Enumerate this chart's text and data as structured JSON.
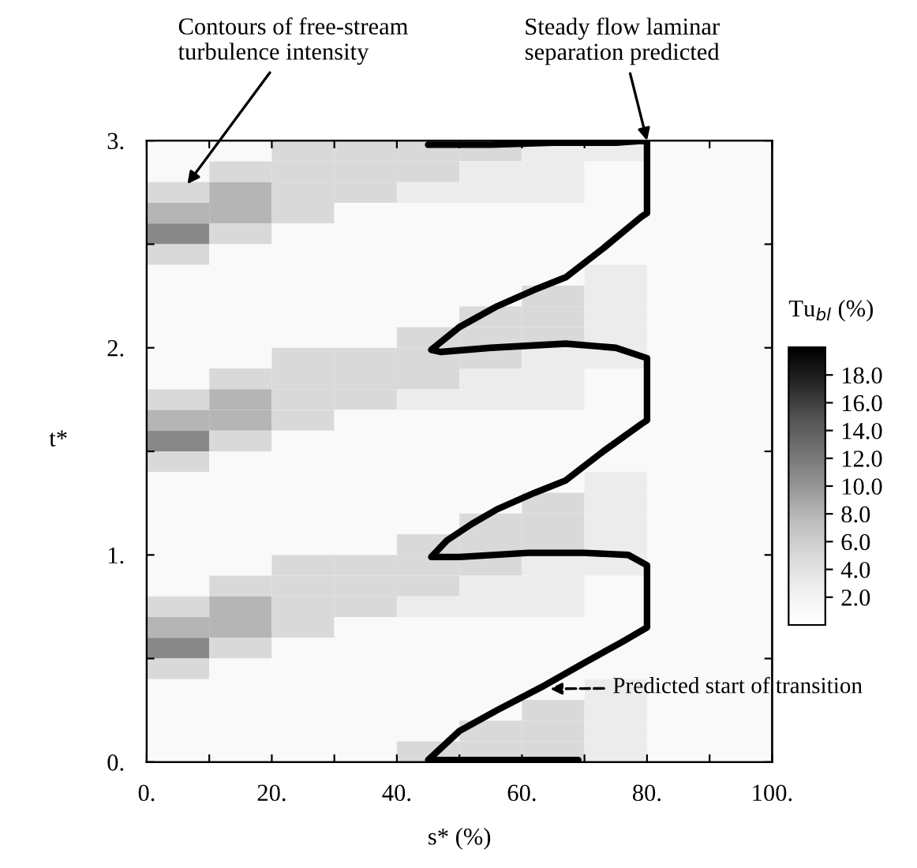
{
  "chart_data": [
    {
      "type": "heatmap",
      "clabel": "Tu$_{bl}$ (%)",
      "categories": [
        null,
        null,
        null,
        null,
        null,
        null,
        null,
        null,
        null,
        null
      ],
      "y_categories": [
        null,
        null,
        null,
        null,
        null,
        null,
        null,
        null,
        null,
        null,
        null,
        null,
        null,
        null,
        null,
        null,
        null,
        null,
        null,
        null,
        null,
        null,
        null,
        null,
        null,
        null,
        null,
        null,
        null,
        null
      ],
      "cells": [
        [
          1,
          1,
          5,
          5,
          5,
          5,
          3,
          3,
          1,
          1
        ],
        [
          1,
          5,
          5,
          5,
          5,
          3,
          3,
          1,
          1,
          1
        ],
        [
          5,
          8,
          5,
          5,
          3,
          3,
          3,
          1,
          1,
          1
        ],
        [
          8,
          8,
          5,
          1,
          1,
          1,
          1,
          1,
          1,
          1
        ],
        [
          11,
          5,
          1,
          1,
          1,
          1,
          1,
          1,
          1,
          1
        ],
        [
          5,
          1,
          1,
          1,
          1,
          1,
          1,
          1,
          1,
          1
        ],
        [
          1,
          1,
          1,
          1,
          1,
          1,
          1,
          3,
          1,
          1
        ],
        [
          1,
          1,
          1,
          1,
          1,
          1,
          5,
          3,
          1,
          1
        ],
        [
          1,
          1,
          1,
          1,
          1,
          5,
          5,
          3,
          1,
          1
        ],
        [
          1,
          1,
          1,
          1,
          5,
          5,
          5,
          3,
          1,
          1
        ],
        [
          1,
          1,
          5,
          5,
          5,
          5,
          3,
          3,
          1,
          1
        ],
        [
          1,
          5,
          5,
          5,
          5,
          3,
          3,
          1,
          1,
          1
        ],
        [
          5,
          8,
          5,
          5,
          3,
          3,
          3,
          1,
          1,
          1
        ],
        [
          8,
          8,
          5,
          1,
          1,
          1,
          1,
          1,
          1,
          1
        ],
        [
          11,
          5,
          1,
          1,
          1,
          1,
          1,
          1,
          1,
          1
        ],
        [
          5,
          1,
          1,
          1,
          1,
          1,
          1,
          1,
          1,
          1
        ],
        [
          1,
          1,
          1,
          1,
          1,
          1,
          1,
          3,
          1,
          1
        ],
        [
          1,
          1,
          1,
          1,
          1,
          1,
          5,
          3,
          1,
          1
        ],
        [
          1,
          1,
          1,
          1,
          1,
          5,
          5,
          3,
          1,
          1
        ],
        [
          1,
          1,
          1,
          1,
          5,
          5,
          5,
          3,
          1,
          1
        ],
        [
          1,
          1,
          5,
          5,
          5,
          5,
          3,
          3,
          1,
          1
        ],
        [
          1,
          5,
          5,
          5,
          5,
          3,
          3,
          1,
          1,
          1
        ],
        [
          5,
          8,
          5,
          5,
          3,
          3,
          3,
          1,
          1,
          1
        ],
        [
          8,
          8,
          5,
          1,
          1,
          1,
          1,
          1,
          1,
          1
        ],
        [
          11,
          5,
          1,
          1,
          1,
          1,
          1,
          1,
          1,
          1
        ],
        [
          5,
          1,
          1,
          1,
          1,
          1,
          1,
          1,
          1,
          1
        ],
        [
          1,
          1,
          1,
          1,
          1,
          1,
          1,
          3,
          1,
          1
        ],
        [
          1,
          1,
          1,
          1,
          1,
          1,
          5,
          3,
          1,
          1
        ],
        [
          1,
          1,
          1,
          1,
          1,
          5,
          5,
          3,
          1,
          1
        ],
        [
          1,
          1,
          1,
          1,
          5,
          5,
          5,
          3,
          1,
          1
        ]
      ],
      "clim": [
        0,
        20
      ],
      "cticks": [
        {
          "value": 2,
          "label": "2.0"
        },
        {
          "value": 4,
          "label": "4.0"
        },
        {
          "value": 6,
          "label": "6.0"
        },
        {
          "value": 8,
          "label": "8.0"
        },
        {
          "value": 10,
          "label": "10.0"
        },
        {
          "value": 12,
          "label": "12.0"
        },
        {
          "value": 14,
          "label": "14.0"
        },
        {
          "value": 16,
          "label": "16.0"
        },
        {
          "value": 18,
          "label": "18.0"
        }
      ],
      "annotations": [
        "Contours of free-stream\nturbulence intensity"
      ]
    },
    {
      "type": "line",
      "xlabel": "s* (%)",
      "ylabel": "t*",
      "xlim": [
        0,
        100
      ],
      "ylim": [
        0,
        3
      ],
      "xticks": [
        {
          "value": 0,
          "label": "0."
        },
        {
          "value": 10,
          "label": null
        },
        {
          "value": 20,
          "label": "20."
        },
        {
          "value": 30,
          "label": null
        },
        {
          "value": 40,
          "label": "40."
        },
        {
          "value": 50,
          "label": null
        },
        {
          "value": 60,
          "label": "60."
        },
        {
          "value": 70,
          "label": null
        },
        {
          "value": 80,
          "label": "80."
        },
        {
          "value": 90,
          "label": null
        },
        {
          "value": 100,
          "label": "100."
        }
      ],
      "yticks": [
        {
          "value": 0,
          "label": "0."
        },
        {
          "value": 0.5,
          "label": null
        },
        {
          "value": 1,
          "label": "1."
        },
        {
          "value": 1.5,
          "label": null
        },
        {
          "value": 2,
          "label": "2."
        },
        {
          "value": 2.5,
          "label": null
        },
        {
          "value": 3,
          "label": "3."
        }
      ],
      "series": [
        {
          "color": "#000000",
          "x": [
            69,
            55,
            45,
            50,
            56,
            63,
            70,
            76,
            80,
            80,
            77,
            70,
            61,
            50,
            45.5,
            48,
            52,
            56,
            62,
            67,
            73,
            79,
            80,
            80,
            75,
            67,
            55,
            47,
            45.5,
            50,
            56,
            62,
            67,
            73,
            79,
            80,
            80,
            75,
            65,
            55,
            45
          ],
          "values": [
            0.01,
            0.01,
            0.01,
            0.15,
            0.25,
            0.36,
            0.48,
            0.58,
            0.65,
            0.95,
            1.0,
            1.01,
            1.01,
            0.99,
            0.99,
            1.07,
            1.15,
            1.22,
            1.3,
            1.36,
            1.5,
            1.63,
            1.65,
            1.95,
            2.0,
            2.02,
            2.0,
            1.98,
            1.99,
            2.1,
            2.2,
            2.28,
            2.34,
            2.48,
            2.63,
            2.65,
            3.0,
            2.99,
            2.99,
            2.98,
            2.98
          ]
        }
      ],
      "annotations": [
        {
          "text": "Steady flow laminar\nseparation predicted",
          "x": 80,
          "y": 3.0
        },
        "Predicted start of transition"
      ]
    }
  ]
}
